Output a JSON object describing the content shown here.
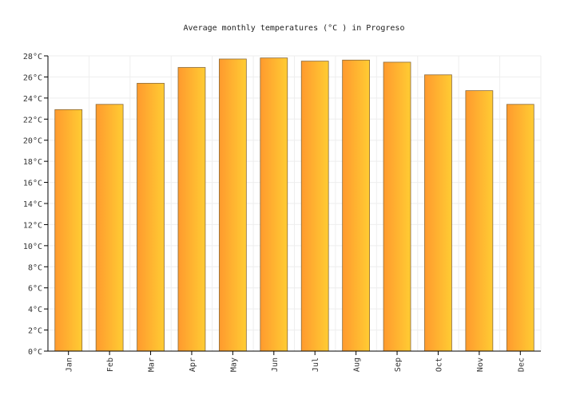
{
  "chart_data": {
    "type": "bar",
    "title": "Average monthly temperatures (°C ) in Progreso",
    "categories": [
      "Jan",
      "Feb",
      "Mar",
      "Apr",
      "May",
      "Jun",
      "Jul",
      "Aug",
      "Sep",
      "Oct",
      "Nov",
      "Dec"
    ],
    "series": [
      {
        "values": [
          22.9,
          23.4,
          25.4,
          26.9,
          27.7,
          27.8,
          27.5,
          27.6,
          27.4,
          26.2,
          24.7,
          23.4
        ]
      }
    ],
    "ylim": [
      0,
      28
    ],
    "yticks": [
      "0°C",
      "2°C",
      "4°C",
      "6°C",
      "8°C",
      "10°C",
      "12°C",
      "14°C",
      "16°C",
      "18°C",
      "20°C",
      "22°C",
      "24°C",
      "26°C",
      "28°C"
    ],
    "grid": true,
    "colors": {
      "bar_start": "#ff9a2e",
      "bar_end": "#ffcc33",
      "bar_stroke": "#8a6a3a",
      "grid": "#eeeeee",
      "axis": "#000000"
    }
  }
}
